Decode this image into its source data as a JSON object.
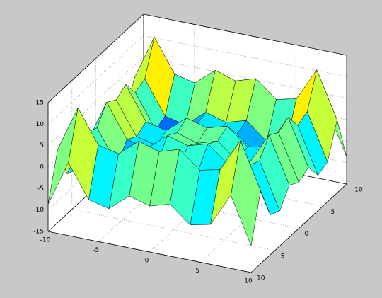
{
  "chart_data": {
    "type": "surface",
    "x": [
      -10,
      -8,
      -6,
      -4,
      -2,
      0,
      2,
      4,
      6,
      8,
      10
    ],
    "y": [
      -10,
      -8,
      -6,
      -4,
      -2,
      0,
      2,
      4,
      6,
      8,
      10
    ],
    "z": [
      [
        -8.7,
        2.0,
        -5.7,
        -6.8,
        -2.9,
        -4.3,
        -2.9,
        -6.8,
        -5.7,
        2.0,
        -8.7
      ],
      [
        2.0,
        12.7,
        5.0,
        3.9,
        7.8,
        6.3,
        7.8,
        3.9,
        5.0,
        12.7,
        2.0
      ],
      [
        -5.7,
        5.0,
        -2.7,
        -3.8,
        0.1,
        -1.3,
        0.1,
        -3.8,
        -2.7,
        5.0,
        -5.7
      ],
      [
        -6.8,
        3.9,
        -3.8,
        -4.8,
        -1.0,
        -2.4,
        -1.0,
        -4.8,
        -3.8,
        3.9,
        -6.8
      ],
      [
        -2.9,
        7.8,
        0.1,
        -1.0,
        2.9,
        1.5,
        2.9,
        -1.0,
        0.1,
        7.8,
        -2.9
      ],
      [
        -4.3,
        6.3,
        -1.3,
        -2.4,
        1.5,
        0,
        1.5,
        -2.4,
        -1.3,
        6.3,
        -4.3
      ],
      [
        -2.9,
        7.8,
        0.1,
        -1.0,
        2.9,
        1.5,
        2.9,
        -1.0,
        0.1,
        7.8,
        -2.9
      ],
      [
        -6.8,
        3.9,
        -3.8,
        -4.8,
        -1.0,
        -2.4,
        -1.0,
        -4.8,
        -3.8,
        3.9,
        -6.8
      ],
      [
        -5.7,
        5.0,
        -2.7,
        -3.8,
        0.1,
        -1.3,
        0.1,
        -3.8,
        -2.7,
        5.0,
        -5.7
      ],
      [
        2.0,
        12.7,
        5.0,
        3.9,
        7.8,
        6.3,
        7.8,
        3.9,
        5.0,
        12.7,
        2.0
      ],
      [
        -8.7,
        2.0,
        -5.7,
        -6.8,
        -2.9,
        -4.3,
        -2.9,
        -6.8,
        -5.7,
        2.0,
        -8.7
      ]
    ],
    "xlim": [
      -10,
      10
    ],
    "ylim": [
      -10,
      10
    ],
    "zlim": [
      -15,
      15
    ],
    "xticks": [
      -10,
      -5,
      0,
      5,
      10
    ],
    "yticks": [
      -10,
      -5,
      0,
      5,
      10
    ],
    "zticks": [
      -15,
      -10,
      -5,
      0,
      5,
      10,
      15
    ],
    "grid": true,
    "colormap": "jet"
  }
}
